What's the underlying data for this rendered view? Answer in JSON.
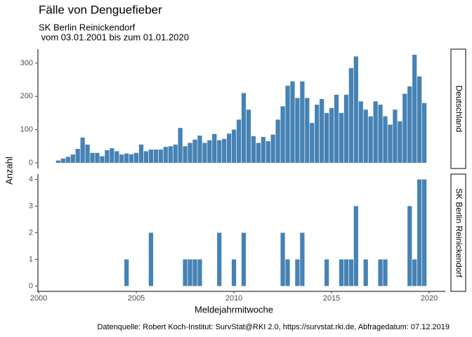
{
  "chart_data": {
    "type": "bar",
    "title": "Fälle von Denguefieber",
    "subtitle": [
      "SK Berlin Reinickendorf",
      " vom 03.01.2001 bis zum 01.01.2020"
    ],
    "xlabel": "Meldejahrmitwoche",
    "ylabel": "Anzahl",
    "caption": "Datenquelle: Robert Koch-Institut: SurvStat@RKI 2.0, https://survstat.rki.de, Abfragedatum: 07.12.2019",
    "color": "#4682b4",
    "xlim": [
      1999.925,
      2020.825
    ],
    "xticks": [
      2000,
      2005,
      2010,
      2015,
      2020
    ],
    "x": [
      2001,
      2001.25,
      2001.5,
      2001.75,
      2002,
      2002.25,
      2002.5,
      2002.75,
      2003,
      2003.25,
      2003.5,
      2003.75,
      2004,
      2004.25,
      2004.5,
      2004.75,
      2005,
      2005.25,
      2005.5,
      2005.75,
      2006,
      2006.25,
      2006.5,
      2006.75,
      2007,
      2007.25,
      2007.5,
      2007.75,
      2008,
      2008.25,
      2008.5,
      2008.75,
      2009,
      2009.25,
      2009.5,
      2009.75,
      2010,
      2010.25,
      2010.5,
      2010.75,
      2011,
      2011.25,
      2011.5,
      2011.75,
      2012,
      2012.25,
      2012.5,
      2012.75,
      2013,
      2013.25,
      2013.5,
      2013.75,
      2014,
      2014.25,
      2014.5,
      2014.75,
      2015,
      2015.25,
      2015.5,
      2015.75,
      2016,
      2016.25,
      2016.5,
      2016.75,
      2017,
      2017.25,
      2017.5,
      2017.75,
      2018,
      2018.25,
      2018.5,
      2018.75,
      2019,
      2019.25,
      2019.5,
      2019.75
    ],
    "panels": [
      {
        "name": "Deutschland",
        "ylim": [
          -17,
          342
        ],
        "yticks": [
          0,
          100,
          200,
          300
        ],
        "values": [
          7,
          13,
          18,
          25,
          42,
          76,
          55,
          30,
          30,
          20,
          38,
          44,
          35,
          25,
          28,
          26,
          30,
          55,
          35,
          40,
          40,
          40,
          48,
          50,
          55,
          105,
          50,
          60,
          70,
          82,
          60,
          68,
          87,
          68,
          72,
          88,
          100,
          130,
          210,
          160,
          80,
          60,
          78,
          65,
          85,
          130,
          170,
          232,
          245,
          195,
          245,
          195,
          120,
          175,
          192,
          150,
          165,
          205,
          150,
          205,
          285,
          320,
          185,
          160,
          140,
          185,
          175,
          140,
          115,
          160,
          125,
          208,
          230,
          325,
          260,
          180
        ]
      },
      {
        "name": "SK Berlin Reinickendorf",
        "ylim": [
          -0.2,
          4.2
        ],
        "yticks": [
          0,
          1,
          2,
          3,
          4
        ],
        "values": [
          0,
          0,
          0,
          0,
          0,
          0,
          0,
          0,
          0,
          0,
          0,
          0,
          0,
          0,
          1,
          0,
          0,
          0,
          0,
          2,
          0,
          0,
          0,
          0,
          0,
          0,
          1,
          1,
          1,
          1,
          0,
          0,
          0,
          2,
          0,
          0,
          1,
          0,
          2,
          0,
          0,
          0,
          0,
          0,
          0,
          0,
          2,
          1,
          0,
          1,
          2,
          0,
          0,
          0,
          0,
          1,
          0,
          0,
          1,
          1,
          1,
          3,
          0,
          1,
          0,
          0,
          1,
          1,
          0,
          0,
          0,
          0,
          3,
          1,
          4,
          4
        ]
      }
    ]
  }
}
